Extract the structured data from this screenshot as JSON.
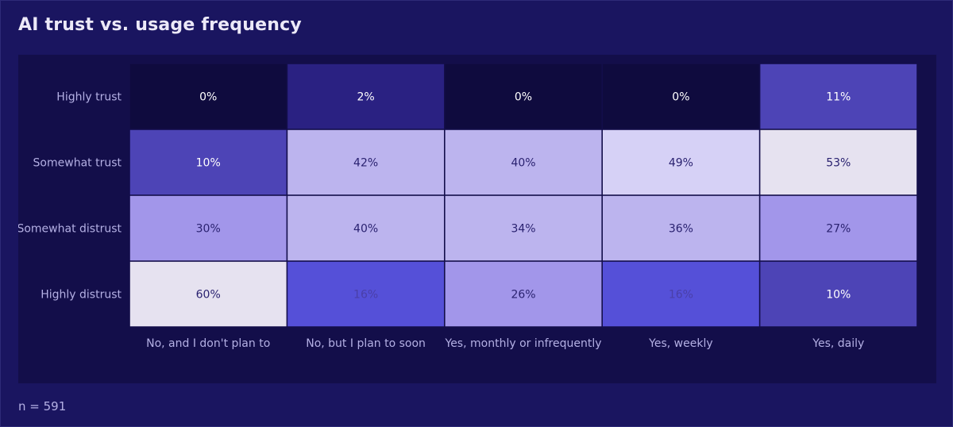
{
  "title": "AI trust vs. usage frequency",
  "footnote": "n = 591",
  "colors": {
    "background": "#1a1560",
    "panel": "#130e4a",
    "cell_text_light": "#ffffff",
    "cell_text_dark": "#2a2270",
    "cell_text_muted": "#4a3fa8",
    "tick_label": "#b4b0e4"
  },
  "chart_data": {
    "type": "heatmap",
    "title": "AI trust vs. usage frequency",
    "x": [
      "No, and I don't plan to",
      "No, but I plan to soon",
      "Yes, monthly or infrequently",
      "Yes, weekly",
      "Yes, daily"
    ],
    "y": [
      "Highly trust",
      "Somewhat trust",
      "Somewhat distrust",
      "Highly distrust"
    ],
    "values": [
      [
        0,
        2,
        0,
        0,
        11
      ],
      [
        10,
        42,
        40,
        49,
        53
      ],
      [
        30,
        40,
        34,
        36,
        27
      ],
      [
        60,
        16,
        26,
        16,
        10
      ]
    ],
    "labels": [
      [
        "0%",
        "2%",
        "0%",
        "0%",
        "11%"
      ],
      [
        "10%",
        "42%",
        "40%",
        "49%",
        "53%"
      ],
      [
        "30%",
        "40%",
        "34%",
        "36%",
        "27%"
      ],
      [
        "60%",
        "16%",
        "26%",
        "16%",
        "10%"
      ]
    ],
    "cell_colors": [
      [
        "#0f0b3e",
        "#2a2182",
        "#0f0b3e",
        "#0f0b3e",
        "#4d44b6"
      ],
      [
        "#4d44b6",
        "#bcb4ee",
        "#bcb4ee",
        "#d6d1f6",
        "#e6e2f0"
      ],
      [
        "#a296ea",
        "#bcb4ee",
        "#bcb4ee",
        "#bcb4ee",
        "#a296ea"
      ],
      [
        "#e6e2f0",
        "#5550d8",
        "#a296ea",
        "#5550d8",
        "#4d44b6"
      ]
    ],
    "grid": false,
    "legend": "none"
  }
}
